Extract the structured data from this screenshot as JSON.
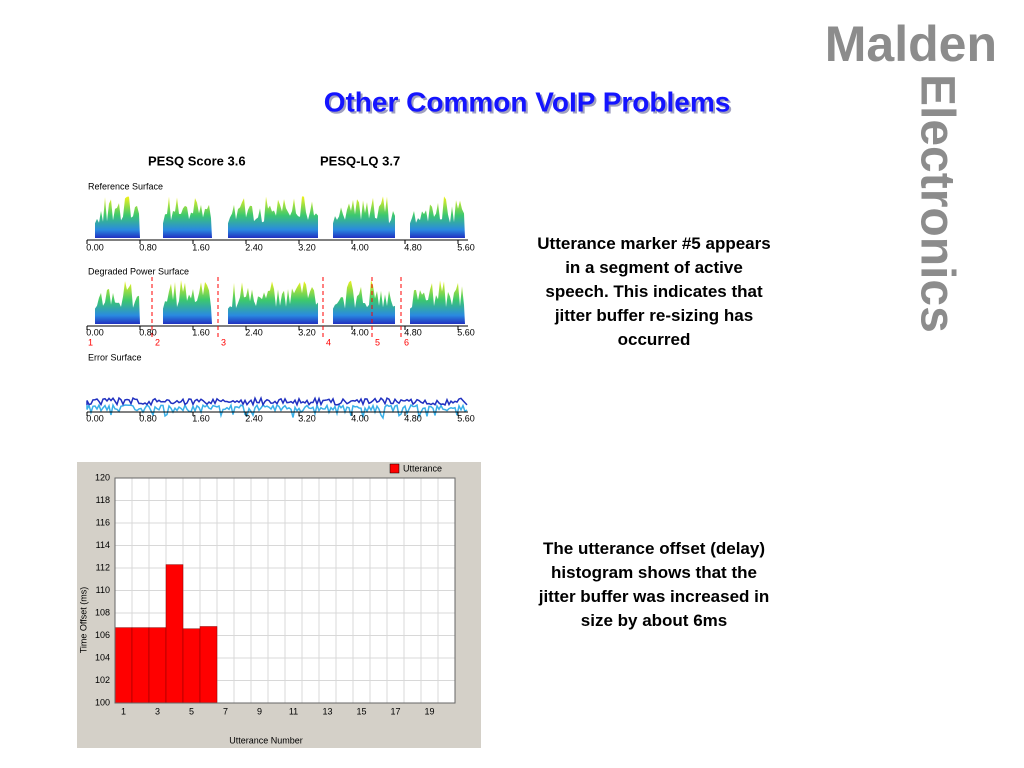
{
  "logo": {
    "line1": "Malden",
    "line2": "Electronics"
  },
  "title": "Other Common VoIP Problems",
  "pesq": {
    "score": "PESQ Score 3.6",
    "lq": "PESQ-LQ 3.7"
  },
  "surfaces": [
    {
      "label": "Reference Surface",
      "ticks": [
        "0.00",
        "0.80",
        "1.60",
        "2.40",
        "3.20",
        "4.00",
        "4.80",
        "5.60"
      ]
    },
    {
      "label": "Degraded Power Surface",
      "ticks": [
        "0.00",
        "0.80",
        "1.60",
        "2.40",
        "3.20",
        "4.00",
        "4.80",
        "5.60"
      ]
    },
    {
      "label": "Error Surface",
      "ticks": [
        "0.00",
        "0.80",
        "1.60",
        "2.40",
        "3.20",
        "4.00",
        "4.80",
        "5.60"
      ]
    }
  ],
  "markers": [
    "1",
    "2",
    "3",
    "4",
    "5",
    "6"
  ],
  "notes": [
    "Utterance marker #5 appears in a segment of active speech.  This indicates that jitter buffer re-sizing has occurred",
    "The utterance offset (delay) histogram shows that the jitter buffer was increased in size by about 6ms"
  ],
  "chart_data": {
    "type": "bar",
    "xlabel": "Utterance Number",
    "ylabel": "Time Offset (ms)",
    "categories": [
      "1",
      null,
      "3",
      null,
      "5",
      null,
      "7",
      null,
      "9",
      null,
      "11",
      null,
      "13",
      null,
      "15",
      null,
      "17",
      null,
      "19",
      null
    ],
    "series": [
      {
        "name": "Utterance",
        "color": "#ff0000",
        "values": [
          106.7,
          106.7,
          106.7,
          112.3,
          106.6,
          106.8,
          null,
          null,
          null,
          null,
          null,
          null,
          null,
          null,
          null,
          null,
          null,
          null,
          null,
          null
        ]
      }
    ],
    "ylim": [
      100,
      120
    ],
    "yticks": [
      100,
      102,
      104,
      106,
      108,
      110,
      112,
      114,
      116,
      118,
      120
    ],
    "grid": true,
    "legend": "upper right"
  }
}
